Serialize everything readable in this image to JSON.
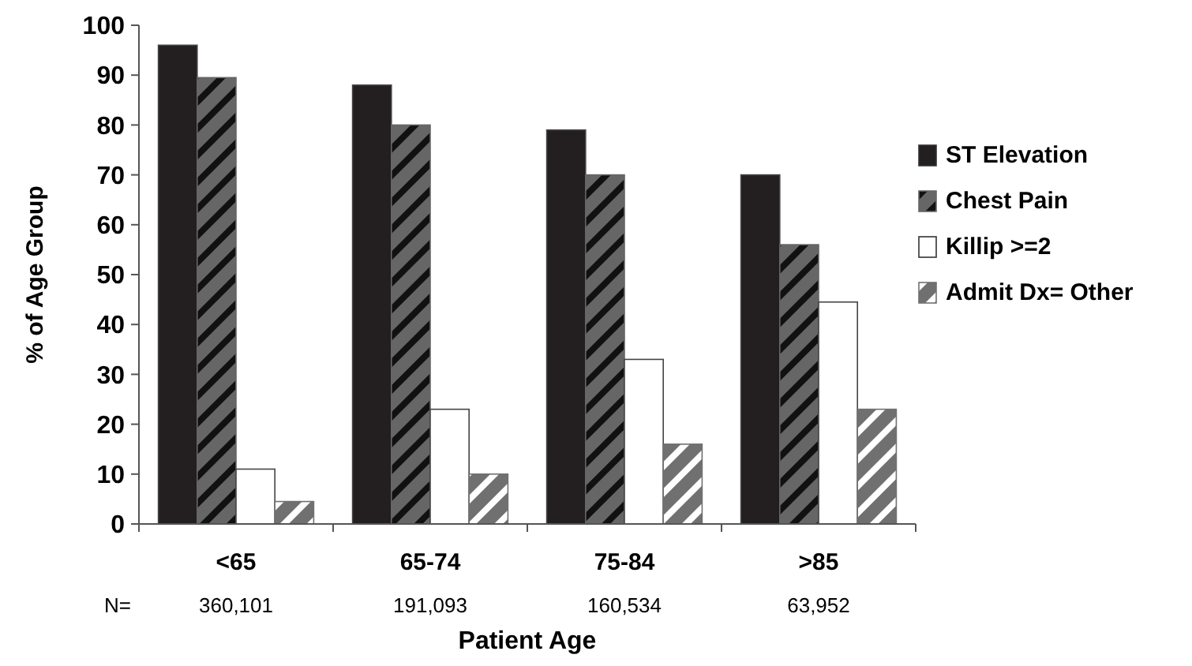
{
  "chart_data": {
    "type": "bar",
    "xlabel": "Patient Age",
    "ylabel": "% of Age Group",
    "categories": [
      "<65",
      "65-74",
      "75-84",
      ">85"
    ],
    "series": [
      {
        "name": "ST Elevation",
        "color": "#231f20",
        "values": [
          96,
          88,
          79,
          70
        ]
      },
      {
        "name": "Chest Pain",
        "color": "#666666",
        "values": [
          89.5,
          80,
          70,
          56
        ]
      },
      {
        "name": "Killip >=2",
        "color": "#ffffff",
        "values": [
          11,
          23,
          33,
          44.5
        ]
      },
      {
        "name": "Admit Dx= Other",
        "color": "#707070",
        "values": [
          4.5,
          10,
          16,
          23
        ]
      }
    ],
    "ylim": [
      0,
      100
    ],
    "yticks": [
      0,
      10,
      20,
      30,
      40,
      50,
      60,
      70,
      80,
      90,
      100
    ],
    "grid": false,
    "legend": "right",
    "annotations": [
      "N=",
      "360,101",
      "191,093",
      "160,534",
      "63,952"
    ]
  }
}
